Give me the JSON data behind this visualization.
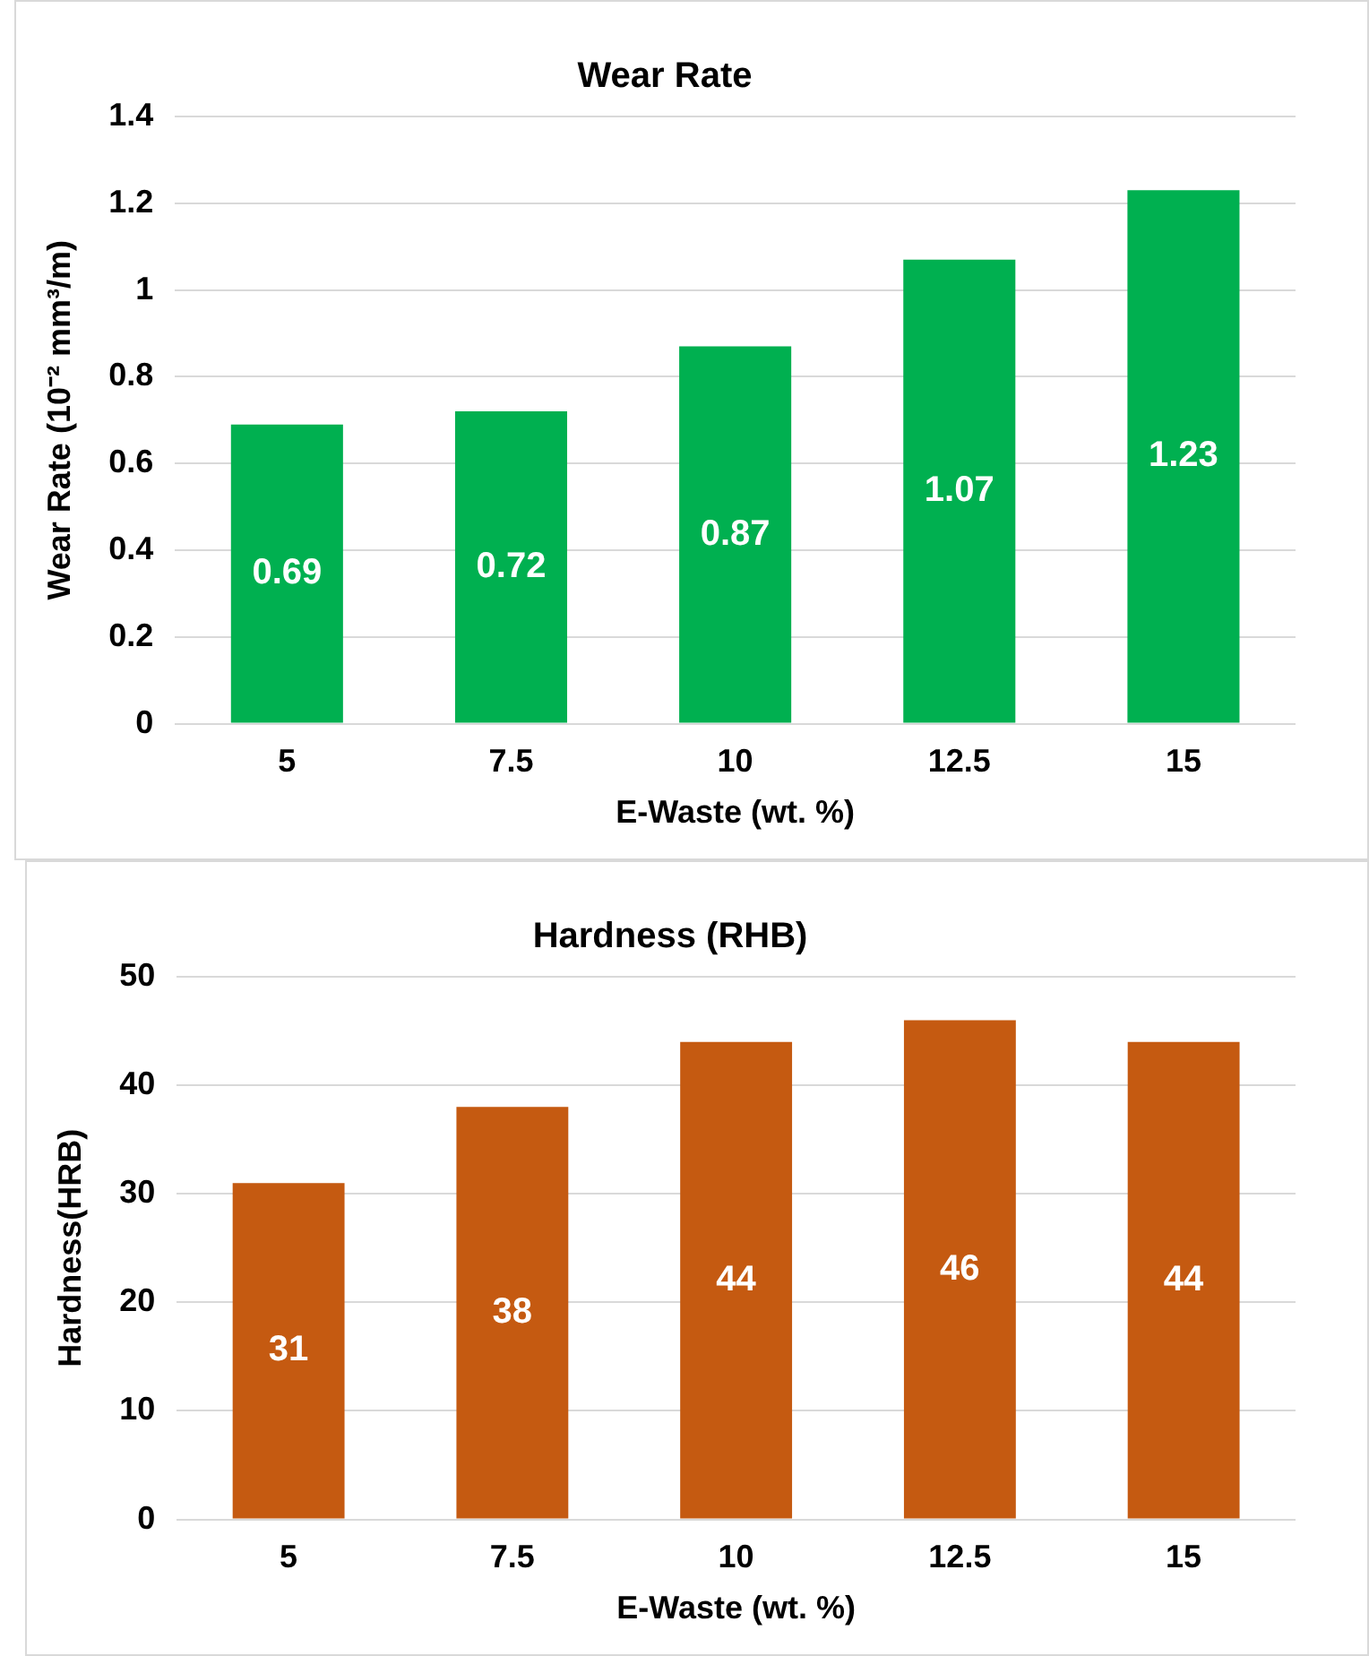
{
  "chart_data": [
    {
      "type": "bar",
      "title": "Wear Rate",
      "xlabel": "E-Waste (wt. %)",
      "ylabel": "Wear Rate (10⁻² mm³/m)",
      "categories": [
        "5",
        "7.5",
        "10",
        "12.5",
        "15"
      ],
      "values": [
        0.69,
        0.72,
        0.87,
        1.07,
        1.23
      ],
      "color": "#00b050",
      "ylim": [
        0,
        1.4
      ],
      "yticks": [
        0,
        0.2,
        0.4,
        0.6,
        0.8,
        1,
        1.2,
        1.4
      ],
      "grid": "y",
      "data_labels": true
    },
    {
      "type": "bar",
      "title": "Hardness (RHB)",
      "xlabel": "E-Waste (wt. %)",
      "ylabel": "Hardness(HRB)",
      "categories": [
        "5",
        "7.5",
        "10",
        "12.5",
        "15"
      ],
      "values": [
        31,
        38,
        44,
        46,
        44
      ],
      "color": "#c55a11",
      "ylim": [
        0,
        50
      ],
      "yticks": [
        0,
        10,
        20,
        30,
        40,
        50
      ],
      "grid": "y",
      "data_labels": true
    }
  ]
}
